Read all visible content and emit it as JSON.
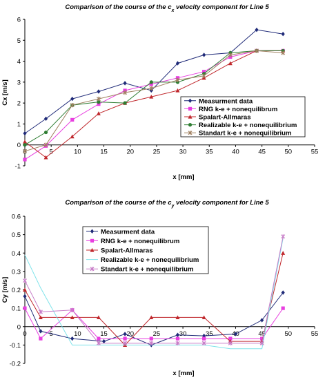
{
  "chart_data": [
    {
      "type": "line",
      "title": "Comparison of the course of the c",
      "title_sub": "x",
      "title_end": " velocity component for Line 5",
      "xlabel": "x [mm]",
      "ylabel": "Cx [m/s]",
      "xlim": [
        0,
        55
      ],
      "ylim": [
        -1,
        6
      ],
      "xticks": [
        "0",
        "5",
        "10",
        "15",
        "20",
        "25",
        "30",
        "35",
        "40",
        "45",
        "50",
        "55"
      ],
      "yticks": [
        "-1",
        "0",
        "1",
        "2",
        "3",
        "4",
        "5",
        "6"
      ],
      "legend_position": "right",
      "series": [
        {
          "name": "Measurment data",
          "color": "#1f2a78",
          "marker": "diamond",
          "x": [
            0,
            4,
            9,
            14,
            19,
            24,
            29,
            34,
            39,
            44,
            49
          ],
          "y": [
            0.55,
            1.25,
            2.2,
            2.55,
            2.95,
            2.6,
            3.9,
            4.3,
            4.4,
            5.5,
            5.3
          ]
        },
        {
          "name": "RNG k-e + nonequilibrum",
          "color": "#e83fe0",
          "marker": "square",
          "x": [
            0,
            4,
            9,
            14,
            19,
            24,
            29,
            34,
            39,
            44,
            49
          ],
          "y": [
            -0.7,
            -0.05,
            1.2,
            1.95,
            2.6,
            2.9,
            3.2,
            3.5,
            4.2,
            4.5,
            4.5
          ]
        },
        {
          "name": "Spalart-Allmaras",
          "color": "#c0282d",
          "marker": "triangle",
          "x": [
            0,
            4,
            9,
            14,
            19,
            24,
            29,
            34,
            39,
            44,
            49
          ],
          "y": [
            0.15,
            -0.6,
            0.4,
            1.5,
            2.0,
            2.3,
            2.6,
            3.2,
            3.9,
            4.5,
            4.5
          ]
        },
        {
          "name": "Realizable k-e + nonequilibrium",
          "color": "#2e7d32",
          "marker": "circle",
          "x": [
            0,
            4,
            9,
            14,
            19,
            24,
            29,
            34,
            39,
            44,
            49
          ],
          "y": [
            0.0,
            0.6,
            1.9,
            2.05,
            2.0,
            3.0,
            3.0,
            3.4,
            4.4,
            4.5,
            4.5
          ]
        },
        {
          "name": "Standart k-e + nonequilibrium",
          "color": "#a08060",
          "marker": "star",
          "x": [
            0,
            4,
            9,
            14,
            19,
            24,
            29,
            34,
            39,
            44,
            49
          ],
          "y": [
            -0.3,
            0.0,
            1.9,
            2.2,
            2.5,
            2.7,
            3.1,
            3.3,
            4.3,
            4.5,
            4.4
          ]
        }
      ]
    },
    {
      "type": "line",
      "title": "Comparison of the course of the c",
      "title_sub": "y",
      "title_end": " velocity component for Line 5",
      "xlabel": "x [mm]",
      "ylabel": "Cy [m/s]",
      "xlim": [
        0,
        55
      ],
      "ylim": [
        -0.2,
        0.6
      ],
      "xticks": [
        "0",
        "5",
        "10",
        "15",
        "20",
        "25",
        "30",
        "35",
        "40",
        "45",
        "50",
        "55"
      ],
      "yticks": [
        "-0.2",
        "-0.1",
        "0",
        "0.1",
        "0.2",
        "0.3",
        "0.4",
        "0.5",
        "0.6"
      ],
      "legend_position": "top-center",
      "series": [
        {
          "name": "Measurment data",
          "color": "#1f2a78",
          "marker": "diamond",
          "x": [
            0,
            3,
            9,
            15,
            19,
            24,
            29,
            34,
            40,
            45,
            49
          ],
          "y": [
            0.165,
            -0.025,
            -0.065,
            -0.08,
            -0.04,
            -0.1,
            -0.045,
            -0.05,
            -0.04,
            0.035,
            0.185
          ]
        },
        {
          "name": "RNG k-e + nonequilibrum",
          "color": "#e83fe0",
          "marker": "square",
          "x": [
            0,
            3,
            9,
            14,
            19,
            24,
            29,
            34,
            39,
            45,
            49
          ],
          "y": [
            0.1,
            -0.065,
            0.09,
            -0.065,
            -0.065,
            -0.065,
            -0.065,
            -0.065,
            -0.065,
            -0.065,
            0.1
          ]
        },
        {
          "name": "Spalart-Allmaras",
          "color": "#c0282d",
          "marker": "triangle",
          "x": [
            0,
            3,
            9,
            14,
            19,
            24,
            29,
            34,
            39,
            45,
            49
          ],
          "y": [
            0.2,
            0.05,
            0.05,
            0.05,
            -0.1,
            0.05,
            0.05,
            0.05,
            -0.08,
            -0.08,
            0.4
          ]
        },
        {
          "name": "Realizable k-e + nonequilibrium",
          "color": "#7fe3ea",
          "marker": "none",
          "x": [
            0,
            3,
            9,
            14,
            19,
            24,
            29,
            34,
            39,
            45,
            49
          ],
          "y": [
            0.39,
            0.21,
            -0.1,
            -0.1,
            -0.1,
            -0.1,
            -0.1,
            -0.1,
            -0.12,
            -0.12,
            0.48
          ]
        },
        {
          "name": "Standart k-e + nonequilibrium",
          "color": "#c77cc7",
          "marker": "star",
          "x": [
            0,
            3,
            9,
            14,
            19,
            24,
            29,
            34,
            39,
            45,
            49
          ],
          "y": [
            0.25,
            0.08,
            0.09,
            -0.09,
            -0.09,
            -0.09,
            -0.09,
            -0.09,
            -0.09,
            -0.09,
            0.49
          ]
        }
      ]
    }
  ]
}
